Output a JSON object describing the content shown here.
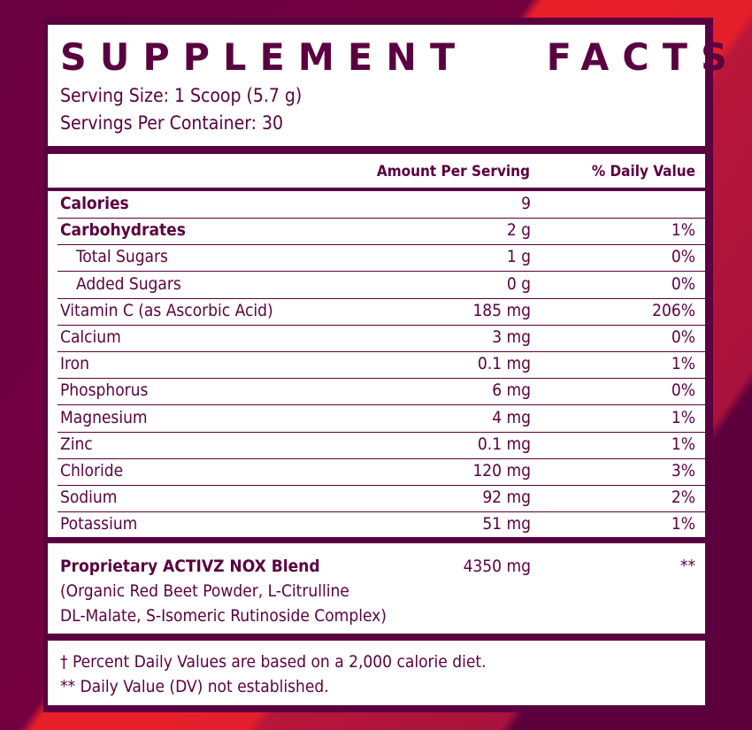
{
  "title": "SUPPLEMENT   FACTS",
  "serving_size": "Serving Size: 1 Scoop (5.7 g)",
  "servings_per_container": "Servings Per Container: 30",
  "headers": {
    "amount": "Amount Per Serving",
    "dv": "% Daily Value"
  },
  "rows": [
    {
      "name": "Calories",
      "amount": "9",
      "dv": "",
      "bold": true,
      "indent": false
    },
    {
      "name": "Carbohydrates",
      "amount": "2 g",
      "dv": "1%",
      "bold": true,
      "indent": false
    },
    {
      "name": "Total Sugars",
      "amount": "1 g",
      "dv": "0%",
      "bold": false,
      "indent": true
    },
    {
      "name": "Added Sugars",
      "amount": "0 g",
      "dv": "0%",
      "bold": false,
      "indent": true
    },
    {
      "name": "Vitamin C (as Ascorbic Acid)",
      "amount": "185 mg",
      "dv": "206%",
      "bold": false,
      "indent": false
    },
    {
      "name": "Calcium",
      "amount": "3 mg",
      "dv": "0%",
      "bold": false,
      "indent": false
    },
    {
      "name": "Iron",
      "amount": "0.1 mg",
      "dv": "1%",
      "bold": false,
      "indent": false
    },
    {
      "name": "Phosphorus",
      "amount": "6 mg",
      "dv": "0%",
      "bold": false,
      "indent": false
    },
    {
      "name": "Magnesium",
      "amount": "4 mg",
      "dv": "1%",
      "bold": false,
      "indent": false
    },
    {
      "name": "Zinc",
      "amount": "0.1 mg",
      "dv": "1%",
      "bold": false,
      "indent": false
    },
    {
      "name": "Chloride",
      "amount": "120 mg",
      "dv": "3%",
      "bold": false,
      "indent": false
    },
    {
      "name": "Sodium",
      "amount": "92 mg",
      "dv": "2%",
      "bold": false,
      "indent": false
    },
    {
      "name": "Potassium",
      "amount": "51 mg",
      "dv": "1%",
      "bold": false,
      "indent": false
    }
  ],
  "blend": {
    "name": "Proprietary ACTIVZ NOX Blend",
    "amount": "4350 mg",
    "dv": "**",
    "line1": "(Organic Red Beet Powder, L-Citrulline",
    "line2": "DL-Malate, S-Isomeric Rutinoside Complex)"
  },
  "footnotes": [
    "† Percent Daily Values are based on a 2,000 calorie diet.",
    "** Daily Value (DV) not established."
  ],
  "colors": {
    "label": "#5a0040",
    "accent_red": "#e8202a"
  }
}
